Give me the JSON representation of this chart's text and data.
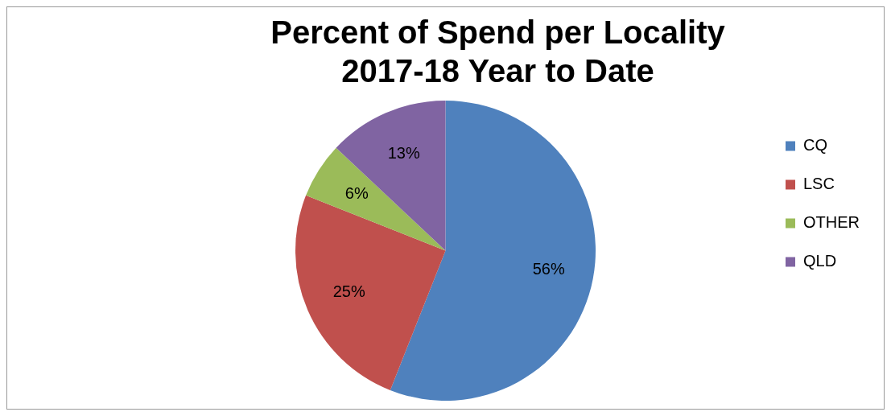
{
  "chart_data": {
    "type": "pie",
    "title": "Percent of Spend per Locality\n2017-18 Year to Date",
    "categories": [
      "CQ",
      "LSC",
      "OTHER",
      "QLD"
    ],
    "values": [
      56,
      25,
      6,
      13
    ],
    "colors": [
      "#4f81bd",
      "#c0504d",
      "#9bbb59",
      "#8064a2"
    ],
    "value_labels": [
      "56%",
      "25%",
      "6%",
      "13%"
    ],
    "legend": "right"
  }
}
